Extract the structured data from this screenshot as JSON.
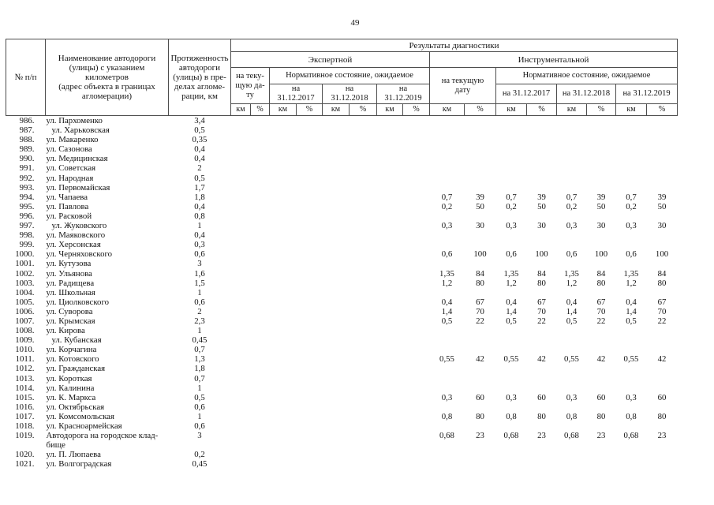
{
  "page_number": "49",
  "table": {
    "header": {
      "num": "№ п/п",
      "name": "Наименование автодороги\n(улицы) с указанием\nкилометров\n(адрес объекта в границах\nагломерации)",
      "length": "Протяженность\nавтодороги\n(улицы) в пре-\nделах агломе-\nрации, км",
      "results": "Результаты диагностики",
      "expert": "Экспертной",
      "instrumental": "Инструментальной",
      "current_expert": "на теку-\nщую да-\nту",
      "current_instr": "на текущую\nдату",
      "normative_expert": "Нормативное состояние, ожидаемое",
      "normative_instr": "Нормативное состояние, ожидаемое",
      "dates_expert": [
        "на\n31.12.2017",
        "на\n31.12.2018",
        "на\n31.12.2019"
      ],
      "dates_instr": [
        "на 31.12.2017",
        "на 31.12.2018",
        "на 31.12.2019"
      ],
      "km": "км",
      "pct": "%"
    },
    "rows": [
      {
        "num": "986.",
        "name": "ул. Пархоменко",
        "indent": false,
        "length": "3,4",
        "expert": [
          "",
          "",
          "",
          "",
          "",
          "",
          "",
          ""
        ],
        "instr": [
          "",
          "",
          "",
          "",
          "",
          "",
          "",
          ""
        ]
      },
      {
        "num": "987.",
        "name": "ул. Харьковская",
        "indent": true,
        "length": "0,5",
        "expert": [
          "",
          "",
          "",
          "",
          "",
          "",
          "",
          ""
        ],
        "instr": [
          "",
          "",
          "",
          "",
          "",
          "",
          "",
          ""
        ]
      },
      {
        "num": "988.",
        "name": "ул. Макаренко",
        "indent": false,
        "length": "0,35",
        "expert": [
          "",
          "",
          "",
          "",
          "",
          "",
          "",
          ""
        ],
        "instr": [
          "",
          "",
          "",
          "",
          "",
          "",
          "",
          ""
        ]
      },
      {
        "num": "989.",
        "name": "ул. Сазонова",
        "indent": false,
        "length": "0,4",
        "expert": [
          "",
          "",
          "",
          "",
          "",
          "",
          "",
          ""
        ],
        "instr": [
          "",
          "",
          "",
          "",
          "",
          "",
          "",
          ""
        ]
      },
      {
        "num": "990.",
        "name": "ул. Медицинская",
        "indent": false,
        "length": "0,4",
        "expert": [
          "",
          "",
          "",
          "",
          "",
          "",
          "",
          ""
        ],
        "instr": [
          "",
          "",
          "",
          "",
          "",
          "",
          "",
          ""
        ]
      },
      {
        "num": "991.",
        "name": "ул. Советская",
        "indent": false,
        "length": "2",
        "expert": [
          "",
          "",
          "",
          "",
          "",
          "",
          "",
          ""
        ],
        "instr": [
          "",
          "",
          "",
          "",
          "",
          "",
          "",
          ""
        ]
      },
      {
        "num": "992.",
        "name": "ул. Народная",
        "indent": false,
        "length": "0,5",
        "expert": [
          "",
          "",
          "",
          "",
          "",
          "",
          "",
          ""
        ],
        "instr": [
          "",
          "",
          "",
          "",
          "",
          "",
          "",
          ""
        ]
      },
      {
        "num": "993.",
        "name": "ул. Первомайская",
        "indent": false,
        "length": "1,7",
        "expert": [
          "",
          "",
          "",
          "",
          "",
          "",
          "",
          ""
        ],
        "instr": [
          "",
          "",
          "",
          "",
          "",
          "",
          "",
          ""
        ]
      },
      {
        "num": "994.",
        "name": "ул. Чапаева",
        "indent": false,
        "length": "1,8",
        "expert": [
          "",
          "",
          "",
          "",
          "",
          "",
          "",
          ""
        ],
        "instr": [
          "0,7",
          "39",
          "0,7",
          "39",
          "0,7",
          "39",
          "0,7",
          "39"
        ]
      },
      {
        "num": "995.",
        "name": "ул. Павлова",
        "indent": false,
        "length": "0,4",
        "expert": [
          "",
          "",
          "",
          "",
          "",
          "",
          "",
          ""
        ],
        "instr": [
          "0,2",
          "50",
          "0,2",
          "50",
          "0,2",
          "50",
          "0,2",
          "50"
        ]
      },
      {
        "num": "996.",
        "name": "ул. Расковой",
        "indent": false,
        "length": "0,8",
        "expert": [
          "",
          "",
          "",
          "",
          "",
          "",
          "",
          ""
        ],
        "instr": [
          "",
          "",
          "",
          "",
          "",
          "",
          "",
          ""
        ]
      },
      {
        "num": "997.",
        "name": "ул. Жуковского",
        "indent": true,
        "length": "1",
        "expert": [
          "",
          "",
          "",
          "",
          "",
          "",
          "",
          ""
        ],
        "instr": [
          "0,3",
          "30",
          "0,3",
          "30",
          "0,3",
          "30",
          "0,3",
          "30"
        ]
      },
      {
        "num": "998.",
        "name": "ул. Маяковского",
        "indent": false,
        "length": "0,4",
        "expert": [
          "",
          "",
          "",
          "",
          "",
          "",
          "",
          ""
        ],
        "instr": [
          "",
          "",
          "",
          "",
          "",
          "",
          "",
          ""
        ]
      },
      {
        "num": "999.",
        "name": "ул. Херсонская",
        "indent": false,
        "length": "0,3",
        "expert": [
          "",
          "",
          "",
          "",
          "",
          "",
          "",
          ""
        ],
        "instr": [
          "",
          "",
          "",
          "",
          "",
          "",
          "",
          ""
        ]
      },
      {
        "num": "1000.",
        "name": "ул. Черняховского",
        "indent": false,
        "length": "0,6",
        "expert": [
          "",
          "",
          "",
          "",
          "",
          "",
          "",
          ""
        ],
        "instr": [
          "0,6",
          "100",
          "0,6",
          "100",
          "0,6",
          "100",
          "0,6",
          "100"
        ]
      },
      {
        "num": "1001.",
        "name": "ул. Кутузова",
        "indent": false,
        "length": "3",
        "expert": [
          "",
          "",
          "",
          "",
          "",
          "",
          "",
          ""
        ],
        "instr": [
          "",
          "",
          "",
          "",
          "",
          "",
          "",
          ""
        ]
      },
      {
        "num": "1002.",
        "name": "ул. Ульянова",
        "indent": false,
        "length": "1,6",
        "expert": [
          "",
          "",
          "",
          "",
          "",
          "",
          "",
          ""
        ],
        "instr": [
          "1,35",
          "84",
          "1,35",
          "84",
          "1,35",
          "84",
          "1,35",
          "84"
        ]
      },
      {
        "num": "1003.",
        "name": "ул. Радищева",
        "indent": false,
        "length": "1,5",
        "expert": [
          "",
          "",
          "",
          "",
          "",
          "",
          "",
          ""
        ],
        "instr": [
          "1,2",
          "80",
          "1,2",
          "80",
          "1,2",
          "80",
          "1,2",
          "80"
        ]
      },
      {
        "num": "1004.",
        "name": "ул. Школьная",
        "indent": false,
        "length": "1",
        "expert": [
          "",
          "",
          "",
          "",
          "",
          "",
          "",
          ""
        ],
        "instr": [
          "",
          "",
          "",
          "",
          "",
          "",
          "",
          ""
        ]
      },
      {
        "num": "1005.",
        "name": "ул. Циолковского",
        "indent": false,
        "length": "0,6",
        "expert": [
          "",
          "",
          "",
          "",
          "",
          "",
          "",
          ""
        ],
        "instr": [
          "0,4",
          "67",
          "0,4",
          "67",
          "0,4",
          "67",
          "0,4",
          "67"
        ]
      },
      {
        "num": "1006.",
        "name": "ул. Суворова",
        "indent": false,
        "length": "2",
        "expert": [
          "",
          "",
          "",
          "",
          "",
          "",
          "",
          ""
        ],
        "instr": [
          "1,4",
          "70",
          "1,4",
          "70",
          "1,4",
          "70",
          "1,4",
          "70"
        ]
      },
      {
        "num": "1007.",
        "name": "ул. Крымская",
        "indent": false,
        "length": "2,3",
        "expert": [
          "",
          "",
          "",
          "",
          "",
          "",
          "",
          ""
        ],
        "instr": [
          "0,5",
          "22",
          "0,5",
          "22",
          "0,5",
          "22",
          "0,5",
          "22"
        ]
      },
      {
        "num": "1008.",
        "name": "ул. Кирова",
        "indent": false,
        "length": "1",
        "expert": [
          "",
          "",
          "",
          "",
          "",
          "",
          "",
          ""
        ],
        "instr": [
          "",
          "",
          "",
          "",
          "",
          "",
          "",
          ""
        ]
      },
      {
        "num": "1009.",
        "name": "ул. Кубанская",
        "indent": true,
        "length": "0,45",
        "expert": [
          "",
          "",
          "",
          "",
          "",
          "",
          "",
          ""
        ],
        "instr": [
          "",
          "",
          "",
          "",
          "",
          "",
          "",
          ""
        ]
      },
      {
        "num": "1010.",
        "name": "ул. Корчагина",
        "indent": false,
        "length": "0,7",
        "expert": [
          "",
          "",
          "",
          "",
          "",
          "",
          "",
          ""
        ],
        "instr": [
          "",
          "",
          "",
          "",
          "",
          "",
          "",
          ""
        ]
      },
      {
        "num": "1011.",
        "name": "ул. Котовского",
        "indent": false,
        "length": "1,3",
        "expert": [
          "",
          "",
          "",
          "",
          "",
          "",
          "",
          ""
        ],
        "instr": [
          "0,55",
          "42",
          "0,55",
          "42",
          "0,55",
          "42",
          "0,55",
          "42"
        ]
      },
      {
        "num": "1012.",
        "name": "ул. Гражданская",
        "indent": false,
        "length": "1,8",
        "expert": [
          "",
          "",
          "",
          "",
          "",
          "",
          "",
          ""
        ],
        "instr": [
          "",
          "",
          "",
          "",
          "",
          "",
          "",
          ""
        ]
      },
      {
        "num": "1013.",
        "name": "ул. Короткая",
        "indent": false,
        "length": "0,7",
        "expert": [
          "",
          "",
          "",
          "",
          "",
          "",
          "",
          ""
        ],
        "instr": [
          "",
          "",
          "",
          "",
          "",
          "",
          "",
          ""
        ]
      },
      {
        "num": "1014.",
        "name": "ул. Калинина",
        "indent": false,
        "length": "1",
        "expert": [
          "",
          "",
          "",
          "",
          "",
          "",
          "",
          ""
        ],
        "instr": [
          "",
          "",
          "",
          "",
          "",
          "",
          "",
          ""
        ]
      },
      {
        "num": "1015.",
        "name": "ул. К. Маркса",
        "indent": false,
        "length": "0,5",
        "expert": [
          "",
          "",
          "",
          "",
          "",
          "",
          "",
          ""
        ],
        "instr": [
          "0,3",
          "60",
          "0,3",
          "60",
          "0,3",
          "60",
          "0,3",
          "60"
        ]
      },
      {
        "num": "1016.",
        "name": "ул. Октябрьская",
        "indent": false,
        "length": "0,6",
        "expert": [
          "",
          "",
          "",
          "",
          "",
          "",
          "",
          ""
        ],
        "instr": [
          "",
          "",
          "",
          "",
          "",
          "",
          "",
          ""
        ]
      },
      {
        "num": "1017.",
        "name": "ул. Комсомольская",
        "indent": false,
        "length": "1",
        "expert": [
          "",
          "",
          "",
          "",
          "",
          "",
          "",
          ""
        ],
        "instr": [
          "0,8",
          "80",
          "0,8",
          "80",
          "0,8",
          "80",
          "0,8",
          "80"
        ]
      },
      {
        "num": "1018.",
        "name": "ул. Красноармейская",
        "indent": false,
        "length": "0,6",
        "expert": [
          "",
          "",
          "",
          "",
          "",
          "",
          "",
          ""
        ],
        "instr": [
          "",
          "",
          "",
          "",
          "",
          "",
          "",
          ""
        ]
      },
      {
        "num": "1019.",
        "name": "Автодорога на городское клад-\nбище",
        "indent": false,
        "length": "3",
        "expert": [
          "",
          "",
          "",
          "",
          "",
          "",
          "",
          ""
        ],
        "instr": [
          "0,68",
          "23",
          "0,68",
          "23",
          "0,68",
          "23",
          "0,68",
          "23"
        ]
      },
      {
        "num": "1020.",
        "name": "ул. П. Люпаева",
        "indent": false,
        "length": "0,2",
        "expert": [
          "",
          "",
          "",
          "",
          "",
          "",
          "",
          ""
        ],
        "instr": [
          "",
          "",
          "",
          "",
          "",
          "",
          "",
          ""
        ]
      },
      {
        "num": "1021.",
        "name": "ул. Волгоградская",
        "indent": false,
        "length": "0,45",
        "expert": [
          "",
          "",
          "",
          "",
          "",
          "",
          "",
          ""
        ],
        "instr": [
          "",
          "",
          "",
          "",
          "",
          "",
          "",
          ""
        ]
      }
    ]
  }
}
